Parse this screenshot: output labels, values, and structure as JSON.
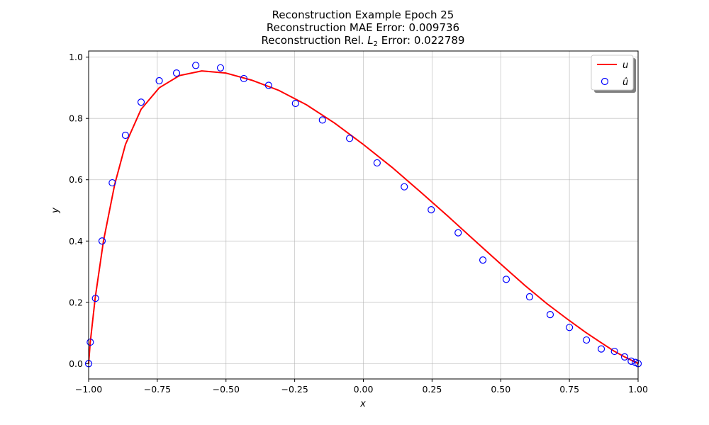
{
  "chart_data": {
    "type": "line",
    "title_lines": [
      "Reconstruction Example Epoch 25",
      "Reconstruction MAE Error: 0.009736"
    ],
    "title_l2": {
      "prefix": "Reconstruction Rel. ",
      "symbol": "L",
      "subscript": "2",
      "suffix": " Error: 0.022789"
    },
    "xlabel": "x",
    "ylabel": "y",
    "xlim": [
      -1.0,
      1.0
    ],
    "ylim": [
      -0.05,
      1.02
    ],
    "xticks": [
      -1.0,
      -0.75,
      -0.5,
      -0.25,
      0.0,
      0.25,
      0.5,
      0.75,
      1.0
    ],
    "xtick_labels": [
      "−1.00",
      "−0.75",
      "−0.50",
      "−0.25",
      "0.00",
      "0.25",
      "0.50",
      "0.75",
      "1.00"
    ],
    "yticks": [
      0.0,
      0.2,
      0.4,
      0.6,
      0.8,
      1.0
    ],
    "ytick_labels": [
      "0.0",
      "0.2",
      "0.4",
      "0.6",
      "0.8",
      "1.0"
    ],
    "grid": true,
    "legend_placement": "top-right",
    "series": [
      {
        "name": "u",
        "kind": "line",
        "color": "#ff0000",
        "x": [
          -1.0,
          -0.994,
          -0.976,
          -0.946,
          -0.905,
          -0.866,
          -0.809,
          -0.743,
          -0.669,
          -0.588,
          -0.5,
          -0.407,
          -0.309,
          -0.208,
          -0.105,
          0.0,
          0.105,
          0.208,
          0.309,
          0.407,
          0.5,
          0.588,
          0.669,
          0.743,
          0.809,
          0.866,
          0.914,
          0.951,
          0.978,
          0.995,
          1.0
        ],
        "y": [
          0.0,
          0.07,
          0.215,
          0.4,
          0.585,
          0.715,
          0.83,
          0.9,
          0.94,
          0.955,
          0.948,
          0.925,
          0.892,
          0.845,
          0.785,
          0.715,
          0.64,
          0.56,
          0.48,
          0.4,
          0.325,
          0.255,
          0.195,
          0.145,
          0.102,
          0.068,
          0.04,
          0.022,
          0.01,
          0.003,
          0.0
        ]
      },
      {
        "name": "û",
        "kind": "scatter",
        "color": "#0000ff",
        "x": [
          -1.0,
          -0.994,
          -0.975,
          -0.951,
          -0.914,
          -0.866,
          -0.809,
          -0.743,
          -0.68,
          -0.61,
          -0.52,
          -0.435,
          -0.345,
          -0.247,
          -0.149,
          -0.05,
          0.05,
          0.149,
          0.247,
          0.345,
          0.435,
          0.52,
          0.605,
          0.68,
          0.75,
          0.812,
          0.866,
          0.914,
          0.951,
          0.975,
          0.99,
          1.0
        ],
        "y": [
          0.0,
          0.07,
          0.213,
          0.4,
          0.59,
          0.745,
          0.853,
          0.923,
          0.948,
          0.973,
          0.965,
          0.93,
          0.908,
          0.849,
          0.795,
          0.735,
          0.655,
          0.577,
          0.502,
          0.427,
          0.338,
          0.275,
          0.218,
          0.16,
          0.118,
          0.077,
          0.048,
          0.04,
          0.022,
          0.008,
          0.004,
          0.0
        ]
      }
    ]
  }
}
